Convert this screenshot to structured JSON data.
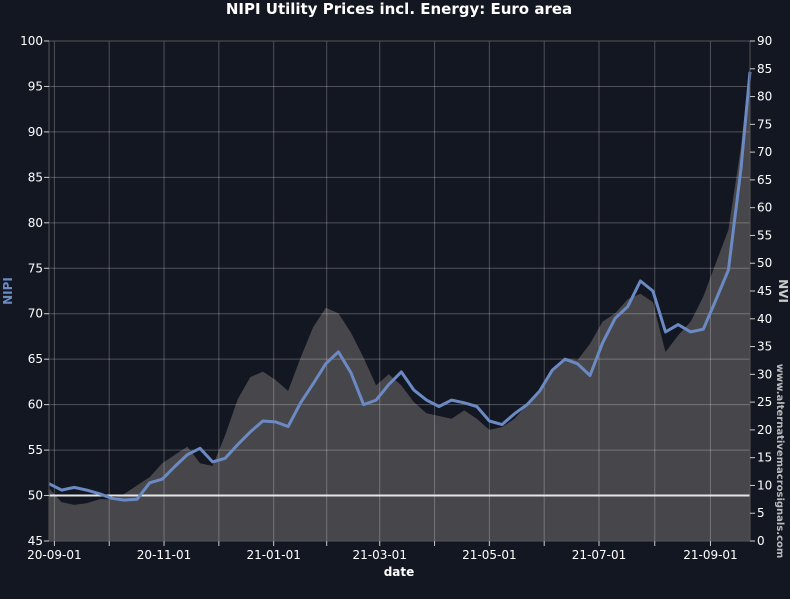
{
  "chart_data": {
    "type": "line",
    "title": "NIPI Utility Prices incl. Energy: Euro area",
    "xlabel": "date",
    "ylabel_left": "NIPI",
    "ylabel_right": "NVI",
    "watermark": "www.alternativemacrosignals.com",
    "x_ticks": [
      "20-09-01",
      "20-11-01",
      "21-01-01",
      "21-03-01",
      "21-05-01",
      "21-07-01",
      "21-09-01"
    ],
    "y_left_ticks": [
      45,
      50,
      55,
      60,
      65,
      70,
      75,
      80,
      85,
      90,
      95,
      100
    ],
    "y_right_ticks": [
      0,
      5,
      10,
      15,
      20,
      25,
      30,
      35,
      40,
      45,
      50,
      55,
      60,
      65,
      70,
      75,
      80,
      85,
      90
    ],
    "ylim_left": [
      45,
      100
    ],
    "ylim_right": [
      0,
      90
    ],
    "xlim": [
      "2020-08-29",
      "2021-09-23"
    ],
    "reference_line": {
      "axis": "left",
      "value": 50,
      "color": "#e6e6e6"
    },
    "grid": true,
    "colors": {
      "background": "#131722",
      "nipi_line": "#6b8ac4",
      "nvi_area": "#4a4a4e",
      "text": "#ffffff",
      "axis_label_left": "#6b8ac4",
      "axis_label_right": "#cccccc"
    },
    "series": [
      {
        "name": "NIPI",
        "axis": "left",
        "style": "line",
        "points": [
          [
            "2020-08-29",
            51.3
          ],
          [
            "2020-09-05",
            50.6
          ],
          [
            "2020-09-12",
            50.9
          ],
          [
            "2020-09-19",
            50.6
          ],
          [
            "2020-09-26",
            50.2
          ],
          [
            "2020-10-03",
            49.7
          ],
          [
            "2020-10-10",
            49.5
          ],
          [
            "2020-10-17",
            49.6
          ],
          [
            "2020-10-24",
            51.4
          ],
          [
            "2020-10-31",
            51.8
          ],
          [
            "2020-11-07",
            53.2
          ],
          [
            "2020-11-14",
            54.5
          ],
          [
            "2020-11-21",
            55.2
          ],
          [
            "2020-11-28",
            53.7
          ],
          [
            "2020-12-05",
            54.1
          ],
          [
            "2020-12-12",
            55.6
          ],
          [
            "2020-12-19",
            57.0
          ],
          [
            "2020-12-26",
            58.2
          ],
          [
            "2021-01-02",
            58.1
          ],
          [
            "2021-01-09",
            57.6
          ],
          [
            "2021-01-16",
            60.2
          ],
          [
            "2021-01-23",
            62.3
          ],
          [
            "2021-01-30",
            64.5
          ],
          [
            "2021-02-06",
            65.8
          ],
          [
            "2021-02-13",
            63.5
          ],
          [
            "2021-02-20",
            60.0
          ],
          [
            "2021-02-27",
            60.5
          ],
          [
            "2021-03-06",
            62.2
          ],
          [
            "2021-03-13",
            63.6
          ],
          [
            "2021-03-20",
            61.6
          ],
          [
            "2021-03-27",
            60.5
          ],
          [
            "2021-04-03",
            59.8
          ],
          [
            "2021-04-10",
            60.5
          ],
          [
            "2021-04-17",
            60.2
          ],
          [
            "2021-04-24",
            59.8
          ],
          [
            "2021-05-01",
            58.2
          ],
          [
            "2021-05-08",
            57.8
          ],
          [
            "2021-05-15",
            59.0
          ],
          [
            "2021-05-22",
            60.0
          ],
          [
            "2021-05-29",
            61.5
          ],
          [
            "2021-06-05",
            63.8
          ],
          [
            "2021-06-12",
            65.0
          ],
          [
            "2021-06-19",
            64.5
          ],
          [
            "2021-06-26",
            63.2
          ],
          [
            "2021-07-03",
            66.8
          ],
          [
            "2021-07-10",
            69.5
          ],
          [
            "2021-07-17",
            70.8
          ],
          [
            "2021-07-24",
            73.6
          ],
          [
            "2021-07-31",
            72.5
          ],
          [
            "2021-08-07",
            68.0
          ],
          [
            "2021-08-14",
            68.8
          ],
          [
            "2021-08-21",
            68.0
          ],
          [
            "2021-08-28",
            68.3
          ],
          [
            "2021-09-04",
            71.5
          ],
          [
            "2021-09-11",
            74.8
          ],
          [
            "2021-09-18",
            86.0
          ],
          [
            "2021-09-23",
            96.6
          ]
        ]
      },
      {
        "name": "NVI",
        "axis": "right",
        "style": "area",
        "points": [
          [
            "2020-08-29",
            9.5
          ],
          [
            "2020-09-05",
            7.0
          ],
          [
            "2020-09-12",
            6.5
          ],
          [
            "2020-09-19",
            6.8
          ],
          [
            "2020-09-26",
            7.5
          ],
          [
            "2020-10-03",
            7.5
          ],
          [
            "2020-10-10",
            8.5
          ],
          [
            "2020-10-17",
            10.0
          ],
          [
            "2020-10-24",
            11.5
          ],
          [
            "2020-10-31",
            14.0
          ],
          [
            "2020-11-07",
            15.5
          ],
          [
            "2020-11-14",
            17.0
          ],
          [
            "2020-11-21",
            14.0
          ],
          [
            "2020-11-28",
            13.5
          ],
          [
            "2020-12-05",
            19.0
          ],
          [
            "2020-12-12",
            25.5
          ],
          [
            "2020-12-19",
            29.5
          ],
          [
            "2020-12-26",
            30.5
          ],
          [
            "2021-01-02",
            29.0
          ],
          [
            "2021-01-09",
            27.0
          ],
          [
            "2021-01-16",
            33.0
          ],
          [
            "2021-01-23",
            38.5
          ],
          [
            "2021-01-30",
            42.0
          ],
          [
            "2021-02-06",
            41.0
          ],
          [
            "2021-02-13",
            37.5
          ],
          [
            "2021-02-20",
            33.0
          ],
          [
            "2021-02-27",
            28.0
          ],
          [
            "2021-03-06",
            30.0
          ],
          [
            "2021-03-13",
            28.0
          ],
          [
            "2021-03-20",
            25.0
          ],
          [
            "2021-03-27",
            23.0
          ],
          [
            "2021-04-03",
            22.5
          ],
          [
            "2021-04-10",
            22.0
          ],
          [
            "2021-04-17",
            23.5
          ],
          [
            "2021-04-24",
            22.0
          ],
          [
            "2021-05-01",
            20.0
          ],
          [
            "2021-05-08",
            20.5
          ],
          [
            "2021-05-15",
            22.0
          ],
          [
            "2021-05-22",
            24.5
          ],
          [
            "2021-05-29",
            27.0
          ],
          [
            "2021-06-05",
            31.0
          ],
          [
            "2021-06-12",
            33.0
          ],
          [
            "2021-06-19",
            32.5
          ],
          [
            "2021-06-26",
            35.5
          ],
          [
            "2021-07-03",
            39.5
          ],
          [
            "2021-07-10",
            41.0
          ],
          [
            "2021-07-17",
            43.5
          ],
          [
            "2021-07-24",
            44.5
          ],
          [
            "2021-07-31",
            43.0
          ],
          [
            "2021-08-07",
            34.0
          ],
          [
            "2021-08-14",
            37.0
          ],
          [
            "2021-08-21",
            39.5
          ],
          [
            "2021-08-28",
            44.0
          ],
          [
            "2021-09-04",
            50.0
          ],
          [
            "2021-09-11",
            56.0
          ],
          [
            "2021-09-18",
            71.0
          ],
          [
            "2021-09-23",
            86.0
          ]
        ]
      }
    ]
  }
}
